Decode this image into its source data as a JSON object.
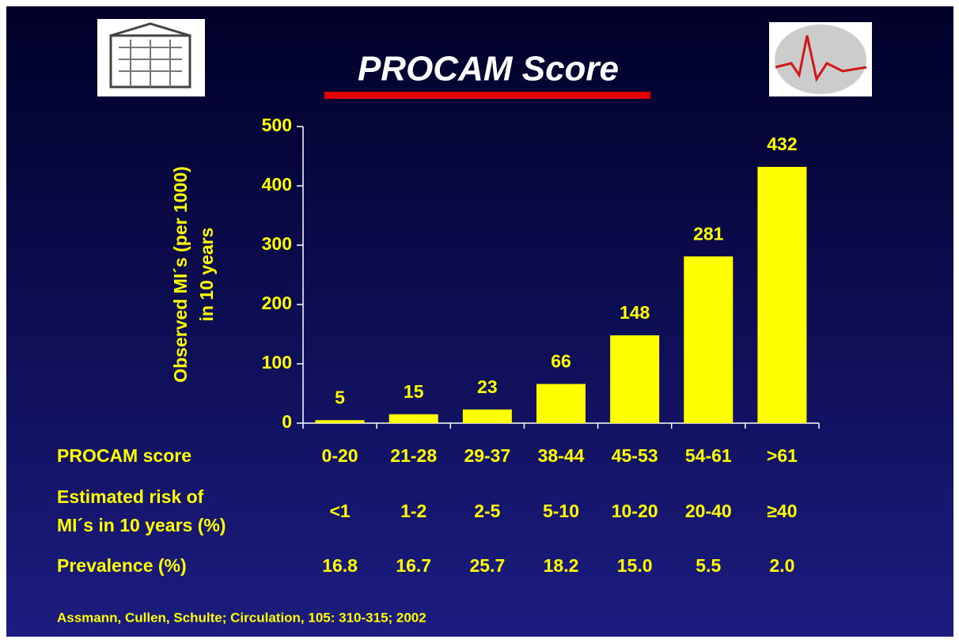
{
  "title": "PROCAM Score",
  "chart_data": {
    "type": "bar",
    "ylabel": [
      "Observed MI´s (per 1000)",
      "in 10 years"
    ],
    "categories": [
      "0-20",
      "21-28",
      "29-37",
      "38-44",
      "45-53",
      "54-61",
      ">61"
    ],
    "values": [
      5,
      15,
      23,
      66,
      148,
      281,
      432
    ],
    "color": "#ffff00",
    "ylim": [
      0,
      500
    ],
    "yticks": [
      0,
      100,
      200,
      300,
      400,
      500
    ]
  },
  "table": {
    "rows": [
      {
        "label": [
          "PROCAM score"
        ],
        "cells_from": "categories"
      },
      {
        "label": [
          "Estimated risk of",
          "MI´s in 10 years (%)"
        ],
        "cells": [
          "<1",
          "1-2",
          "2-5",
          "5-10",
          "10-20",
          "20-40",
          "≥40"
        ]
      },
      {
        "label": [
          "Prevalence (%)"
        ],
        "cells": [
          "16.8",
          "16.7",
          "25.7",
          "18.2",
          "15.0",
          "5.5",
          "2.0"
        ]
      }
    ]
  },
  "citation": "Assmann, Cullen, Schulte; Circulation, 105: 310-315; 2002"
}
